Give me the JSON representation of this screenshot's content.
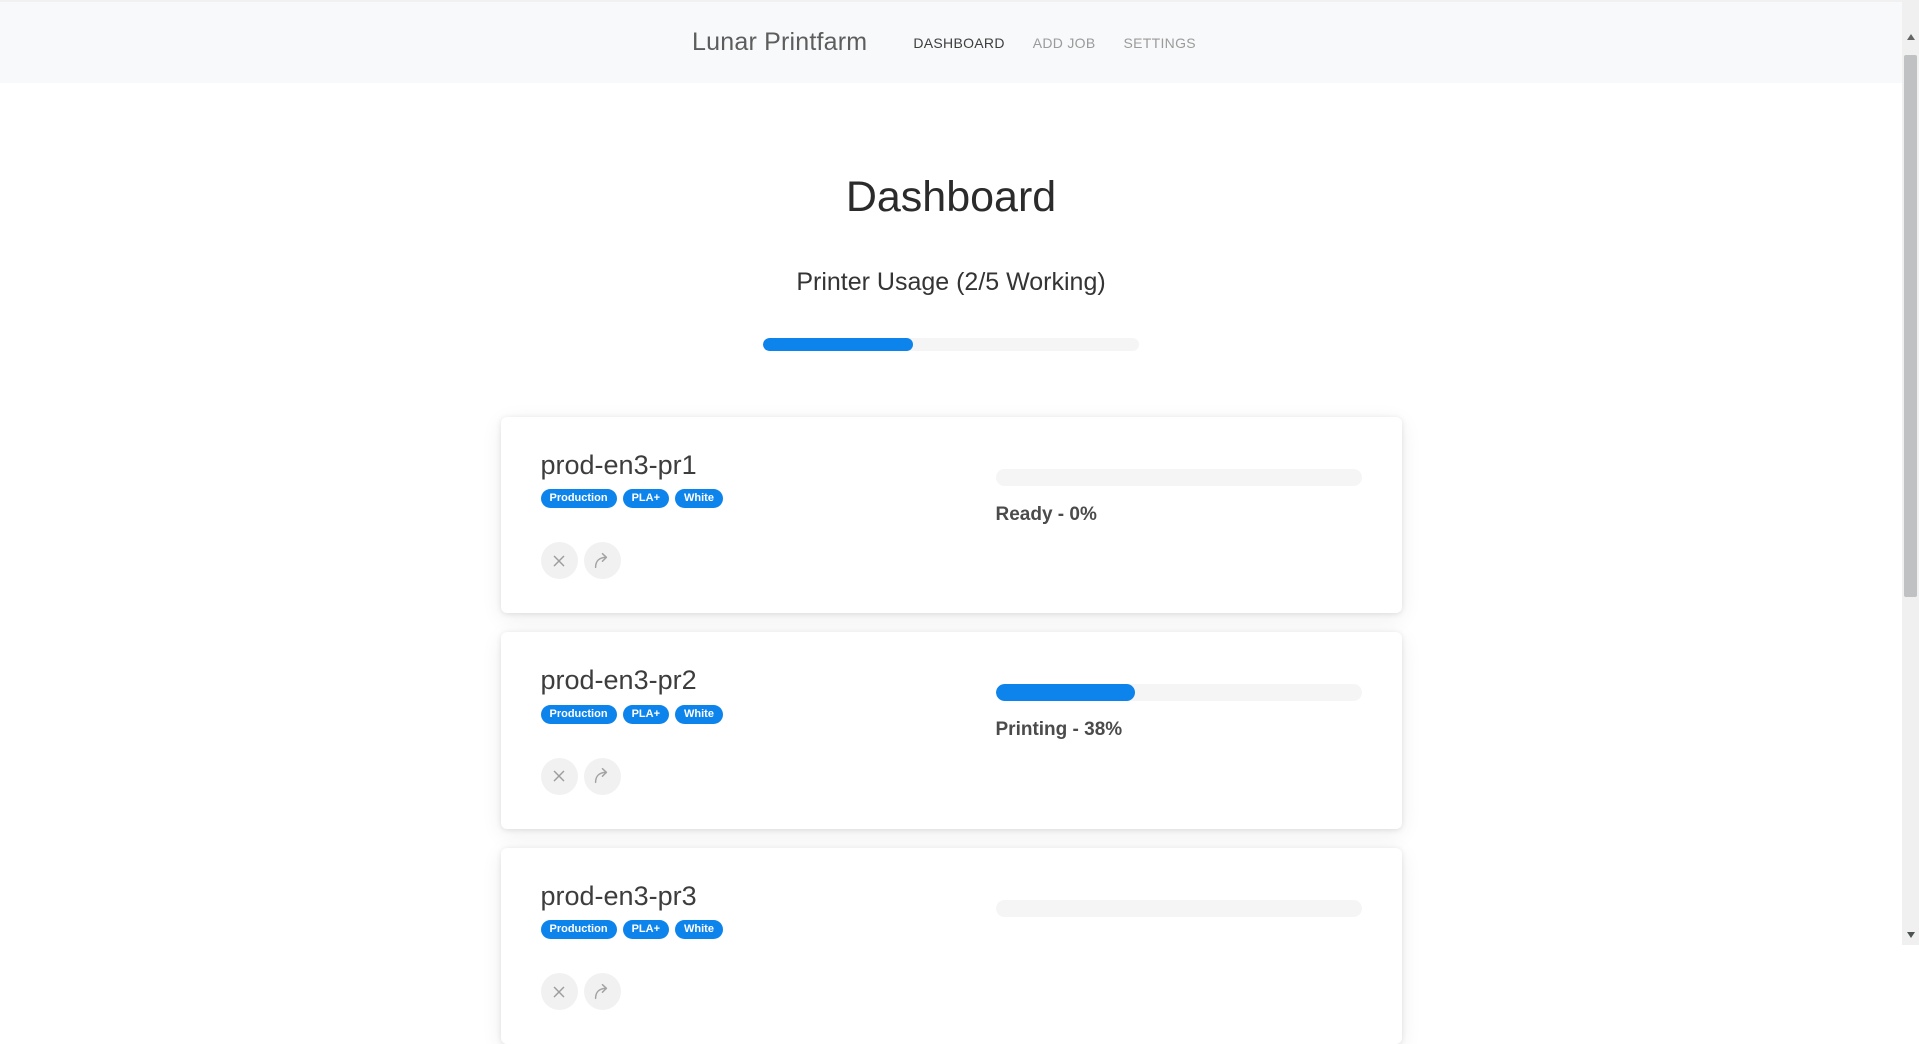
{
  "navbar": {
    "brand": "Lunar Printfarm",
    "items": [
      {
        "label": "DASHBOARD",
        "active": true
      },
      {
        "label": "ADD JOB",
        "active": false
      },
      {
        "label": "SETTINGS",
        "active": false
      }
    ]
  },
  "page": {
    "title": "Dashboard",
    "usage_heading": "Printer Usage (2/5 Working)",
    "usage_percent": 40
  },
  "printers": [
    {
      "name": "prod-en3-pr1",
      "tags": [
        "Production",
        "PLA+",
        "White"
      ],
      "status_text": "Ready - 0%",
      "progress": 0
    },
    {
      "name": "prod-en3-pr2",
      "tags": [
        "Production",
        "PLA+",
        "White"
      ],
      "status_text": "Printing - 38%",
      "progress": 38
    },
    {
      "name": "prod-en3-pr3",
      "tags": [
        "Production",
        "PLA+",
        "White"
      ],
      "progress": 0
    }
  ],
  "icons": {
    "cancel": "x-icon",
    "send": "share-arrow-icon",
    "scroll_up": "up-arrow-icon",
    "scroll_down": "down-arrow-icon"
  },
  "colors": {
    "accent": "#0d83ec",
    "navbar_bg": "#f8f9fa",
    "track": "#f5f5f6",
    "status_text": "#4b4b4b"
  }
}
